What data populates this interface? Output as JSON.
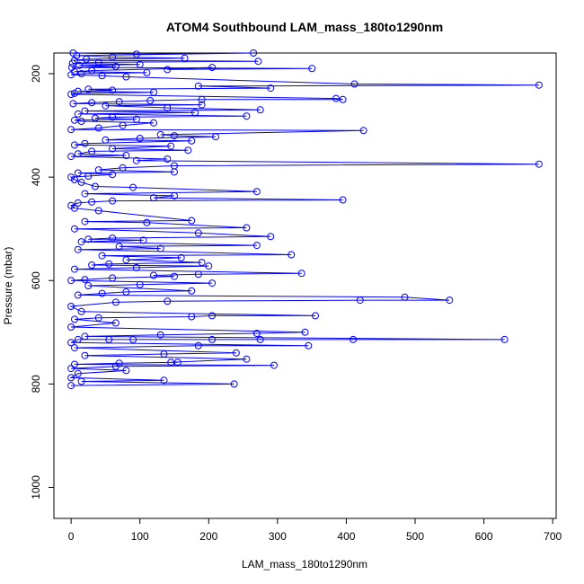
{
  "chart_data": {
    "type": "scatter",
    "title": "ATOM4 Southbound LAM_mass_180to1290nm",
    "xlabel": "LAM_mass_180to1290nm",
    "ylabel": "Pressure (mbar)",
    "xlim": [
      -25,
      705
    ],
    "ylim": [
      1060,
      160
    ],
    "y_reversed": true,
    "x_ticks": [
      0,
      100,
      200,
      300,
      400,
      500,
      600,
      700
    ],
    "y_ticks": [
      200,
      400,
      600,
      800,
      1000
    ],
    "series_color": "#0000ff",
    "grid": false,
    "legend": "none",
    "series": [
      {
        "points": [
          [
            3,
            160
          ],
          [
            95,
            162
          ],
          [
            265,
            160
          ],
          [
            8,
            165
          ],
          [
            60,
            168
          ],
          [
            165,
            170
          ],
          [
            22,
            172
          ],
          [
            5,
            174
          ],
          [
            272,
            176
          ],
          [
            40,
            178
          ],
          [
            2,
            180
          ],
          [
            100,
            182
          ],
          [
            12,
            184
          ],
          [
            65,
            186
          ],
          [
            1,
            188
          ],
          [
            350,
            190
          ],
          [
            140,
            192
          ],
          [
            205,
            188
          ],
          [
            30,
            194
          ],
          [
            5,
            196
          ],
          [
            110,
            198
          ],
          [
            15,
            200
          ],
          [
            0,
            202
          ],
          [
            45,
            204
          ],
          [
            80,
            206
          ],
          [
            412,
            220
          ],
          [
            680,
            222
          ],
          [
            185,
            224
          ],
          [
            290,
            228
          ],
          [
            25,
            230
          ],
          [
            60,
            232
          ],
          [
            10,
            234
          ],
          [
            120,
            236
          ],
          [
            5,
            238
          ],
          [
            0,
            240
          ],
          [
            385,
            248
          ],
          [
            395,
            250
          ],
          [
            190,
            250
          ],
          [
            115,
            252
          ],
          [
            70,
            254
          ],
          [
            30,
            256
          ],
          [
            3,
            258
          ],
          [
            190,
            260
          ],
          [
            50,
            262
          ],
          [
            140,
            266
          ],
          [
            275,
            270
          ],
          [
            20,
            272
          ],
          [
            180,
            275
          ],
          [
            10,
            278
          ],
          [
            255,
            282
          ],
          [
            60,
            284
          ],
          [
            35,
            286
          ],
          [
            95,
            288
          ],
          [
            5,
            290
          ],
          [
            15,
            292
          ],
          [
            120,
            295
          ],
          [
            75,
            300
          ],
          [
            40,
            305
          ],
          [
            0,
            308
          ],
          [
            425,
            310
          ],
          [
            130,
            318
          ],
          [
            150,
            320
          ],
          [
            210,
            322
          ],
          [
            100,
            325
          ],
          [
            50,
            328
          ],
          [
            175,
            330
          ],
          [
            20,
            335
          ],
          [
            5,
            338
          ],
          [
            145,
            340
          ],
          [
            60,
            345
          ],
          [
            170,
            348
          ],
          [
            30,
            350
          ],
          [
            10,
            355
          ],
          [
            80,
            358
          ],
          [
            0,
            360
          ],
          [
            140,
            365
          ],
          [
            95,
            368
          ],
          [
            680,
            375
          ],
          [
            150,
            378
          ],
          [
            75,
            382
          ],
          [
            40,
            386
          ],
          [
            150,
            390
          ],
          [
            10,
            392
          ],
          [
            60,
            395
          ],
          [
            25,
            398
          ],
          [
            0,
            400
          ],
          [
            5,
            405
          ],
          [
            15,
            410
          ],
          [
            35,
            418
          ],
          [
            90,
            420
          ],
          [
            270,
            428
          ],
          [
            20,
            432
          ],
          [
            150,
            436
          ],
          [
            120,
            440
          ],
          [
            395,
            444
          ],
          [
            60,
            446
          ],
          [
            30,
            448
          ],
          [
            10,
            450
          ],
          [
            0,
            455
          ],
          [
            5,
            460
          ],
          [
            40,
            465
          ],
          [
            175,
            484
          ],
          [
            20,
            486
          ],
          [
            110,
            488
          ],
          [
            255,
            498
          ],
          [
            5,
            500
          ],
          [
            185,
            508
          ],
          [
            290,
            515
          ],
          [
            60,
            518
          ],
          [
            25,
            520
          ],
          [
            105,
            522
          ],
          [
            15,
            525
          ],
          [
            270,
            532
          ],
          [
            70,
            534
          ],
          [
            130,
            538
          ],
          [
            10,
            540
          ],
          [
            320,
            550
          ],
          [
            45,
            552
          ],
          [
            160,
            556
          ],
          [
            80,
            560
          ],
          [
            190,
            565
          ],
          [
            55,
            568
          ],
          [
            30,
            570
          ],
          [
            200,
            572
          ],
          [
            95,
            575
          ],
          [
            5,
            578
          ],
          [
            335,
            586
          ],
          [
            185,
            588
          ],
          [
            120,
            590
          ],
          [
            150,
            592
          ],
          [
            60,
            595
          ],
          [
            20,
            598
          ],
          [
            0,
            600
          ],
          [
            205,
            605
          ],
          [
            100,
            608
          ],
          [
            25,
            610
          ],
          [
            175,
            620
          ],
          [
            80,
            622
          ],
          [
            45,
            625
          ],
          [
            10,
            628
          ],
          [
            485,
            632
          ],
          [
            550,
            638
          ],
          [
            420,
            638
          ],
          [
            140,
            640
          ],
          [
            65,
            642
          ],
          [
            0,
            650
          ],
          [
            15,
            660
          ],
          [
            355,
            668
          ],
          [
            205,
            668
          ],
          [
            175,
            670
          ],
          [
            40,
            672
          ],
          [
            5,
            675
          ],
          [
            65,
            682
          ],
          [
            0,
            690
          ],
          [
            340,
            700
          ],
          [
            270,
            702
          ],
          [
            130,
            705
          ],
          [
            20,
            708
          ],
          [
            630,
            714
          ],
          [
            410,
            714
          ],
          [
            275,
            714
          ],
          [
            205,
            714
          ],
          [
            90,
            714
          ],
          [
            55,
            714
          ],
          [
            10,
            714
          ],
          [
            0,
            720
          ],
          [
            345,
            726
          ],
          [
            185,
            726
          ],
          [
            5,
            730
          ],
          [
            240,
            740
          ],
          [
            135,
            742
          ],
          [
            20,
            745
          ],
          [
            255,
            752
          ],
          [
            145,
            758
          ],
          [
            155,
            758
          ],
          [
            70,
            760
          ],
          [
            5,
            762
          ],
          [
            295,
            764
          ],
          [
            65,
            766
          ],
          [
            0,
            770
          ],
          [
            80,
            774
          ],
          [
            10,
            780
          ],
          [
            0,
            788
          ],
          [
            135,
            793
          ],
          [
            15,
            795
          ],
          [
            237,
            800
          ],
          [
            0,
            803
          ]
        ]
      }
    ]
  }
}
